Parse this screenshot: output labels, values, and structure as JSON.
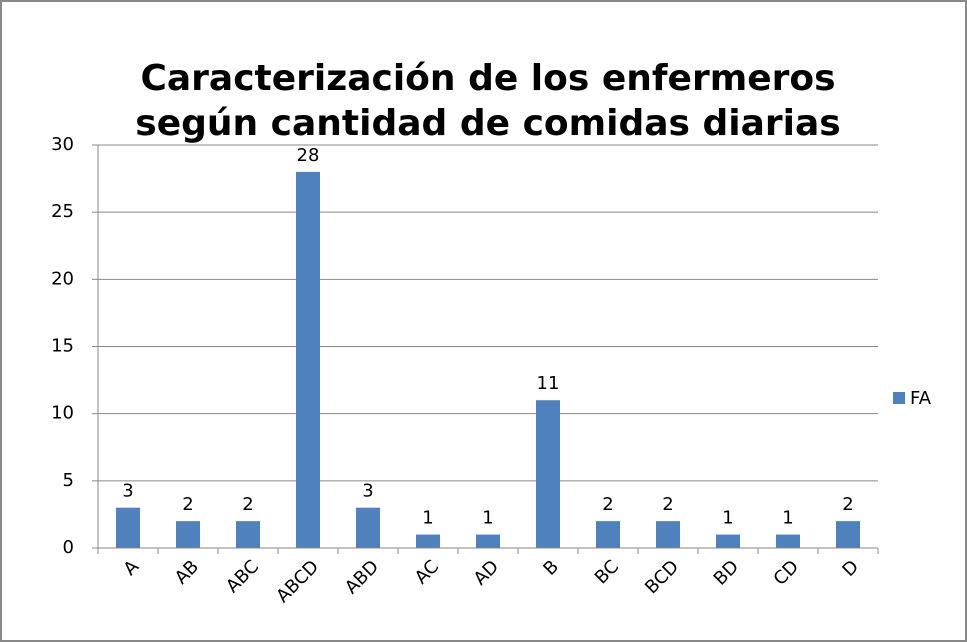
{
  "chart_data": {
    "type": "bar",
    "title": [
      "Caracterización de los enfermeros",
      "según  cantidad de comidas diarias"
    ],
    "categories": [
      "A",
      "AB",
      "ABC",
      "ABCD",
      "ABD",
      "AC",
      "AD",
      "B",
      "BC",
      "BCD",
      "BD",
      "CD",
      "D"
    ],
    "series": [
      {
        "name": "FA",
        "color": "#4f81bd",
        "values": [
          3,
          2,
          2,
          28,
          3,
          1,
          1,
          11,
          2,
          2,
          1,
          1,
          2
        ]
      }
    ],
    "ylim": [
      0,
      30
    ],
    "yticks": [
      0,
      5,
      10,
      15,
      20,
      25,
      30
    ],
    "grid": true,
    "legend": "right"
  }
}
